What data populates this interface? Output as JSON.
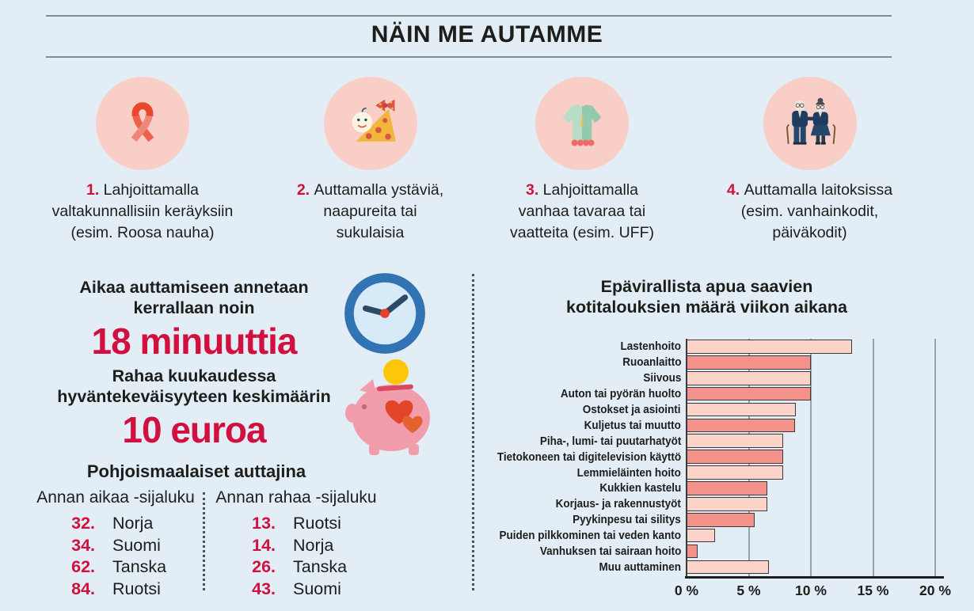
{
  "page_title": "NÄIN ME AUTAMME",
  "colors": {
    "background": "#e2edf5",
    "accent_red": "#d1103f",
    "circle_pink": "#f8cec6",
    "bar_light": "#fbd3c9",
    "bar_dark": "#f2928a",
    "grid_gray": "#97a2aa",
    "text_dark": "#1d1d1b"
  },
  "help_methods": [
    {
      "num": "1.",
      "icon": "ribbon-icon",
      "lines": [
        "Lahjoittamalla",
        "valtakunnallisiin keräyksiin",
        "(esim. Roosa nauha)"
      ]
    },
    {
      "num": "2.",
      "icon": "baby-icon",
      "lines": [
        "Auttamalla ystäviä,",
        "naapureita tai",
        "sukulaisia"
      ]
    },
    {
      "num": "3.",
      "icon": "dress-icon",
      "lines": [
        "Lahjoittamalla",
        "vanhaa tavaraa tai",
        "vaatteita (esim. UFF)"
      ]
    },
    {
      "num": "4.",
      "icon": "elderly-couple-icon",
      "lines": [
        "Auttamalla laitoksissa",
        "(esim. vanhainkodit,",
        "päiväkodit)"
      ]
    }
  ],
  "time_stat": {
    "line1": "Aikaa auttamiseen annetaan",
    "line2": "kerrallaan noin",
    "value": "18 minuuttia"
  },
  "money_stat": {
    "line1": "Rahaa kuukaudessa",
    "line2": "hyväntekeväisyyteen keskimäärin",
    "value": "10 euroa"
  },
  "nordic_rankings": {
    "title": "Pohjoismaalaiset auttajina",
    "lists": [
      {
        "title": "Annan aikaa -sijaluku",
        "items": [
          {
            "rank": "32.",
            "country": "Norja"
          },
          {
            "rank": "34.",
            "country": "Suomi"
          },
          {
            "rank": "62.",
            "country": "Tanska"
          },
          {
            "rank": "84.",
            "country": "Ruotsi"
          }
        ]
      },
      {
        "title": "Annan rahaa -sijaluku",
        "items": [
          {
            "rank": "13.",
            "country": "Ruotsi"
          },
          {
            "rank": "14.",
            "country": "Norja"
          },
          {
            "rank": "26.",
            "country": "Tanska"
          },
          {
            "rank": "43.",
            "country": "Suomi"
          }
        ]
      }
    ]
  },
  "chart_data": {
    "type": "bar",
    "orientation": "horizontal",
    "title": "Epävirallista apua saavien kotitalouksien määrä viikon aikana",
    "title_lines": [
      "Epävirallista apua saavien",
      "kotitalouksien määrä viikon aikana"
    ],
    "categories": [
      "Lastenhoito",
      "Ruoanlaitto",
      "Siivous",
      "Auton tai pyörän huolto",
      "Ostokset ja asiointi",
      "Kuljetus tai muutto",
      "Piha-, lumi- tai puutarhatyöt",
      "Tietokoneen tai digitelevision käyttö",
      "Lemmieläinten hoito",
      "Kukkien kastelu",
      "Korjaus- ja rakennustyöt",
      "Pyykinpesu tai silitys",
      "Puiden pilkkominen tai veden kanto",
      "Vanhuksen tai sairaan hoito",
      "Muu auttaminen"
    ],
    "values": [
      13.3,
      10,
      10,
      10,
      8.8,
      8.7,
      7.8,
      7.8,
      7.8,
      6.5,
      6.5,
      5.5,
      2.3,
      0.9,
      6.6
    ],
    "unit": "%",
    "xlim": [
      0,
      20
    ],
    "x_ticks": [
      "0 %",
      "5 %",
      "10 %",
      "15 %",
      "20 %"
    ],
    "grid": true,
    "legend": false,
    "bar_colors_alternating": [
      "#fbd3c9",
      "#f2928a"
    ]
  }
}
